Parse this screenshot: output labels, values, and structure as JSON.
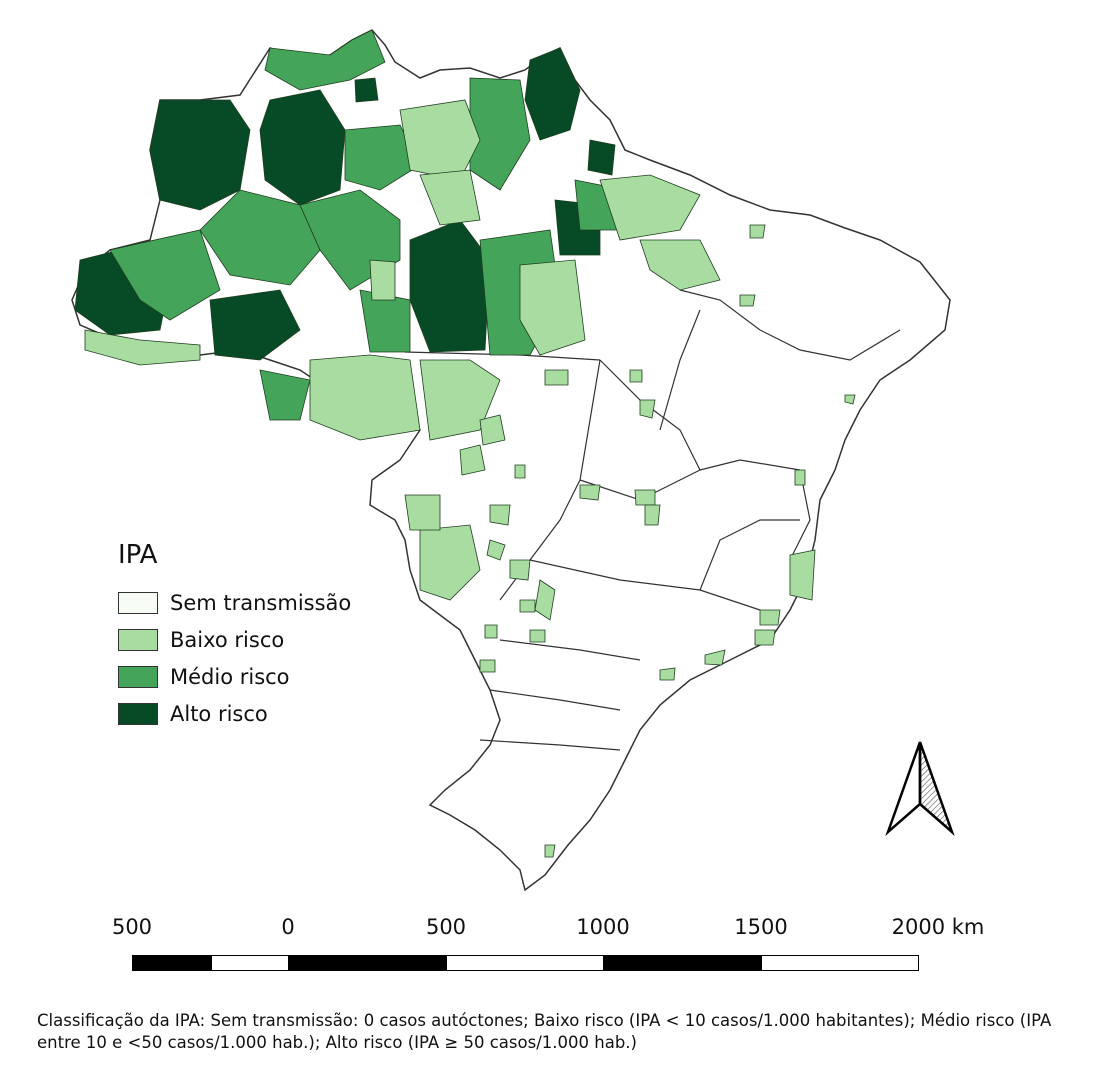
{
  "legend": {
    "title": "IPA",
    "items": [
      {
        "label": "Sem transmissão",
        "color": "#f7fcf5"
      },
      {
        "label": "Baixo risco",
        "color": "#a8dca1"
      },
      {
        "label": "Médio risco",
        "color": "#44a55a"
      },
      {
        "label": "Alto risco",
        "color": "#064a26"
      }
    ]
  },
  "scale_bar": {
    "ticks": [
      "500",
      "0",
      "500",
      "1000",
      "1500",
      "2000 km"
    ],
    "segment_colors": [
      "#000000",
      "#ffffff",
      "#000000",
      "#ffffff",
      "#000000",
      "#ffffff"
    ]
  },
  "north_arrow": {
    "icon": "north-arrow-icon"
  },
  "caption": "Classificação da IPA: Sem transmissão: 0 casos autóctones; Baixo risco (IPA < 10 casos/1.000 habitantes); Médio risco (IPA entre 10 e <50 casos/1.000 hab.); Alto risco (IPA ≥ 50 casos/1.000 hab.)"
}
